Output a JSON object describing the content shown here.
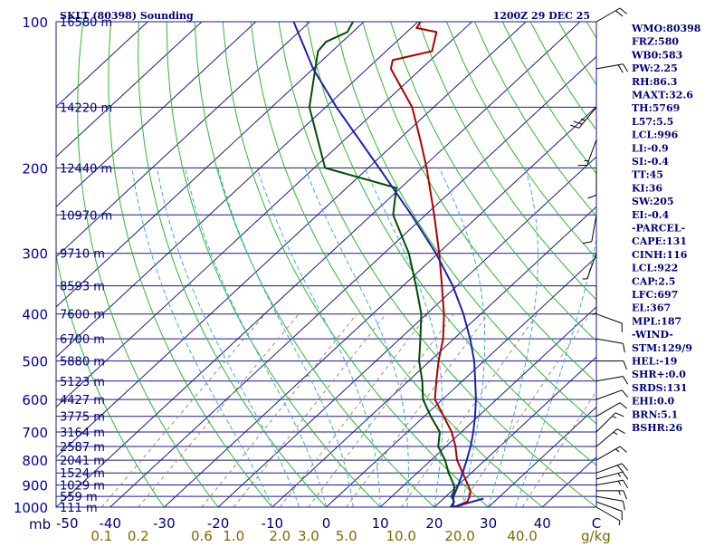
{
  "header": {
    "station": "SKLT (80398) Sounding",
    "time": "1200Z 29 DEC 25"
  },
  "colors": {
    "frame": "#1a1a8c",
    "isobar": "#1a1a8c",
    "isotherm": "#1a1a8c",
    "dry_adiabat": "#2db82d",
    "moist_adiabat": "#40a8d8",
    "mixing_ratio": "#a08c6e",
    "temperature": "#b00000",
    "dewpoint": "#004d00",
    "parcel": "#1f1fb0",
    "wind": "#000000",
    "text": "#00007a",
    "mixing_label": "#7a6a00"
  },
  "indices": [
    "WMO:80398",
    "FRZ:580",
    "WB0:583",
    "PW:2.25",
    "RH:86.3",
    "MAXT:32.6",
    "TH:5769",
    "L57:5.5",
    "LCL:996",
    "LI:-0.9",
    "SI:-0.4",
    "TT:45",
    "KI:36",
    "SW:205",
    "EI:-0.4",
    "-PARCEL-",
    "CAPE:131",
    "CINH:116",
    "LCL:922",
    "CAP:2.5",
    "LFC:697",
    "EL:367",
    "MPL:187",
    "-WIND-",
    "STM:129/9",
    "HEL:-19",
    "SHR+:0.0",
    "SRDS:131",
    "EHI:0.0",
    "BRN:5.1",
    "BSHR:26"
  ],
  "chart_data": {
    "type": "line",
    "title": "SKLT (80398) Sounding",
    "subtitle": "1200Z 29 DEC 25",
    "pressure_unit": "mb",
    "mixing_ratio_unit": "g/kg",
    "pressure_axis": {
      "min": 1000,
      "max": 100,
      "scale": "log"
    },
    "temperature_axis": {
      "min": -50,
      "max": 50
    },
    "pressure_labels": [
      {
        "p": 100,
        "label": "100"
      },
      {
        "p": 200,
        "label": "200"
      },
      {
        "p": 300,
        "label": "300"
      },
      {
        "p": 400,
        "label": "400"
      },
      {
        "p": 500,
        "label": "500"
      },
      {
        "p": 600,
        "label": "600"
      },
      {
        "p": 700,
        "label": "700"
      },
      {
        "p": 800,
        "label": "800"
      },
      {
        "p": 900,
        "label": "900"
      },
      {
        "p": 1000,
        "label": "1000"
      }
    ],
    "height_levels": [
      {
        "p": 100,
        "label": "16580 m"
      },
      {
        "p": 150,
        "label": "14220 m"
      },
      {
        "p": 200,
        "label": "12440 m"
      },
      {
        "p": 250,
        "label": "10970 m"
      },
      {
        "p": 300,
        "label": "9710 m"
      },
      {
        "p": 350,
        "label": "8593 m"
      },
      {
        "p": 400,
        "label": "7600 m"
      },
      {
        "p": 450,
        "label": "6700 m"
      },
      {
        "p": 500,
        "label": "5880 m"
      },
      {
        "p": 550,
        "label": "5123 m"
      },
      {
        "p": 600,
        "label": "4427 m"
      },
      {
        "p": 650,
        "label": "3775 m"
      },
      {
        "p": 700,
        "label": "3164 m"
      },
      {
        "p": 750,
        "label": "2587 m"
      },
      {
        "p": 800,
        "label": "2041 m"
      },
      {
        "p": 850,
        "label": "1524 m"
      },
      {
        "p": 900,
        "label": "1029 m"
      },
      {
        "p": 950,
        "label": "559 m"
      },
      {
        "p": 1000,
        "label": "111 m"
      }
    ],
    "temperature_labels": [
      {
        "t": -50,
        "label": "-50"
      },
      {
        "t": -40,
        "label": "-40"
      },
      {
        "t": -30,
        "label": "-30"
      },
      {
        "t": -20,
        "label": "-20"
      },
      {
        "t": -10,
        "label": "-10"
      },
      {
        "t": 0,
        "label": "0"
      },
      {
        "t": 10,
        "label": "10"
      },
      {
        "t": 20,
        "label": "20"
      },
      {
        "t": 30,
        "label": "30"
      },
      {
        "t": 40,
        "label": "40"
      },
      {
        "t": 50,
        "label": "C"
      }
    ],
    "mixing_ratio_labels": [
      {
        "w": 0.1,
        "label": "0.1"
      },
      {
        "w": 0.2,
        "label": "0.2"
      },
      {
        "w": 0.6,
        "label": "0.6"
      },
      {
        "w": 1.0,
        "label": "1.0"
      },
      {
        "w": 2.0,
        "label": "2.0"
      },
      {
        "w": 3.0,
        "label": "3.0"
      },
      {
        "w": 5.0,
        "label": "5.0"
      },
      {
        "w": 10.0,
        "label": "10.0"
      },
      {
        "w": 20.0,
        "label": "20.0"
      },
      {
        "w": 40.0,
        "label": "40.0"
      }
    ],
    "isotherms": [
      -130,
      -120,
      -110,
      -100,
      -90,
      -80,
      -70,
      -60,
      -50,
      -40,
      -30,
      -20,
      -10,
      0,
      10,
      20,
      30,
      40
    ],
    "dry_adiabats_theta_c": [
      -30,
      -20,
      -10,
      0,
      10,
      20,
      30,
      40,
      50,
      60,
      70,
      80,
      90,
      100,
      110,
      120,
      130,
      140,
      150,
      160,
      170,
      180,
      190,
      200
    ],
    "moist_adiabats_theta_w_c": [
      -10,
      -5,
      0,
      5,
      10,
      15,
      20,
      25,
      30,
      35
    ],
    "series": [
      {
        "name": "Temperature",
        "points": [
          {
            "p": 1000,
            "t": 23.6
          },
          {
            "p": 975,
            "t": 25.0
          },
          {
            "p": 950,
            "t": 24.4
          },
          {
            "p": 925,
            "t": 23.4
          },
          {
            "p": 900,
            "t": 21.8
          },
          {
            "p": 850,
            "t": 18.4
          },
          {
            "p": 800,
            "t": 14.8
          },
          {
            "p": 750,
            "t": 11.8
          },
          {
            "p": 700,
            "t": 8.2
          },
          {
            "p": 650,
            "t": 3.6
          },
          {
            "p": 600,
            "t": -1.4
          },
          {
            "p": 550,
            "t": -4.8
          },
          {
            "p": 500,
            "t": -8.4
          },
          {
            "p": 450,
            "t": -12.0
          },
          {
            "p": 400,
            "t": -16.8
          },
          {
            "p": 350,
            "t": -22.8
          },
          {
            "p": 300,
            "t": -29.8
          },
          {
            "p": 250,
            "t": -38.4
          },
          {
            "p": 200,
            "t": -49.2
          },
          {
            "p": 175,
            "t": -56.0
          },
          {
            "p": 150,
            "t": -64.0
          },
          {
            "p": 125,
            "t": -75.6
          },
          {
            "p": 120,
            "t": -77.0
          },
          {
            "p": 115,
            "t": -71.5
          },
          {
            "p": 105,
            "t": -74.5
          },
          {
            "p": 103,
            "t": -79.0
          },
          {
            "p": 100,
            "t": -79.5
          }
        ]
      },
      {
        "name": "Dewpoint",
        "points": [
          {
            "p": 1000,
            "t": 23.0
          },
          {
            "p": 975,
            "t": 22.6
          },
          {
            "p": 950,
            "t": 21.0
          },
          {
            "p": 925,
            "t": 20.4
          },
          {
            "p": 900,
            "t": 19.2
          },
          {
            "p": 850,
            "t": 15.8
          },
          {
            "p": 800,
            "t": 12.6
          },
          {
            "p": 750,
            "t": 8.6
          },
          {
            "p": 700,
            "t": 6.0
          },
          {
            "p": 650,
            "t": 1.2
          },
          {
            "p": 600,
            "t": -3.6
          },
          {
            "p": 550,
            "t": -7.4
          },
          {
            "p": 500,
            "t": -12.0
          },
          {
            "p": 450,
            "t": -16.2
          },
          {
            "p": 400,
            "t": -21.0
          },
          {
            "p": 350,
            "t": -27.6
          },
          {
            "p": 300,
            "t": -35.4
          },
          {
            "p": 250,
            "t": -46.0
          },
          {
            "p": 220,
            "t": -50.8
          },
          {
            "p": 200,
            "t": -68.0
          },
          {
            "p": 150,
            "t": -83.0
          },
          {
            "p": 125,
            "t": -89.6
          },
          {
            "p": 115,
            "t": -92.6
          },
          {
            "p": 110,
            "t": -93.0
          },
          {
            "p": 105,
            "t": -91.0
          },
          {
            "p": 100,
            "t": -92.0
          }
        ]
      },
      {
        "name": "Parcel",
        "points": [
          {
            "p": 960,
            "t": 27.4
          },
          {
            "p": 1000,
            "t": 23.5
          },
          {
            "p": 950,
            "t": 21.4
          },
          {
            "p": 900,
            "t": 20.0
          },
          {
            "p": 850,
            "t": 18.4
          },
          {
            "p": 800,
            "t": 16.6
          },
          {
            "p": 750,
            "t": 14.6
          },
          {
            "p": 700,
            "t": 12.2
          },
          {
            "p": 650,
            "t": 9.4
          },
          {
            "p": 600,
            "t": 6.2
          },
          {
            "p": 550,
            "t": 2.4
          },
          {
            "p": 500,
            "t": -1.8
          },
          {
            "p": 450,
            "t": -7.0
          },
          {
            "p": 400,
            "t": -13.2
          },
          {
            "p": 350,
            "t": -20.8
          },
          {
            "p": 300,
            "t": -30.4
          },
          {
            "p": 250,
            "t": -42.6
          },
          {
            "p": 200,
            "t": -58.0
          },
          {
            "p": 150,
            "t": -78.0
          },
          {
            "p": 125,
            "t": -90.0
          },
          {
            "p": 100,
            "t": -103.0
          }
        ]
      }
    ],
    "wind_barbs": [
      {
        "p": 1000,
        "dir": 120,
        "kt": 5
      },
      {
        "p": 975,
        "dir": 110,
        "kt": 10
      },
      {
        "p": 950,
        "dir": 100,
        "kt": 10
      },
      {
        "p": 925,
        "dir": 90,
        "kt": 15
      },
      {
        "p": 900,
        "dir": 80,
        "kt": 15
      },
      {
        "p": 875,
        "dir": 75,
        "kt": 15
      },
      {
        "p": 850,
        "dir": 70,
        "kt": 20
      },
      {
        "p": 800,
        "dir": 60,
        "kt": 15
      },
      {
        "p": 750,
        "dir": 50,
        "kt": 15
      },
      {
        "p": 700,
        "dir": 45,
        "kt": 15
      },
      {
        "p": 650,
        "dir": 60,
        "kt": 10
      },
      {
        "p": 600,
        "dir": 70,
        "kt": 10
      },
      {
        "p": 550,
        "dir": 80,
        "kt": 10
      },
      {
        "p": 500,
        "dir": 90,
        "kt": 10
      },
      {
        "p": 450,
        "dir": 100,
        "kt": 10
      },
      {
        "p": 400,
        "dir": 110,
        "kt": 10
      },
      {
        "p": 350,
        "dir": 180,
        "kt": 5
      },
      {
        "p": 300,
        "dir": 200,
        "kt": 5
      },
      {
        "p": 250,
        "dir": 190,
        "kt": 10
      },
      {
        "p": 200,
        "dir": 180,
        "kt": 10
      },
      {
        "p": 175,
        "dir": 200,
        "kt": 15
      },
      {
        "p": 150,
        "dir": 220,
        "kt": 25
      },
      {
        "p": 125,
        "dir": 80,
        "kt": 20
      },
      {
        "p": 100,
        "dir": 60,
        "kt": 20
      }
    ]
  }
}
